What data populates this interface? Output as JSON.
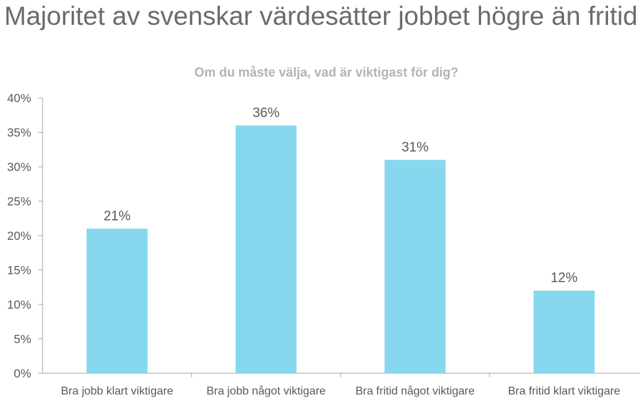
{
  "title": "Majoritet av svenskar värdesätter jobbet högre än fritid",
  "chart_data": {
    "type": "bar",
    "title": "Om du måste välja, vad är viktigast för dig?",
    "categories": [
      "Bra jobb klart viktigare",
      "Bra jobb något viktigare",
      "Bra fritid något viktigare",
      "Bra fritid klart viktigare"
    ],
    "values": [
      21,
      36,
      31,
      12
    ],
    "data_labels": [
      "21%",
      "36%",
      "31%",
      "12%"
    ],
    "xlabel": "",
    "ylabel": "",
    "ylim": [
      0,
      40
    ],
    "yticks": [
      "0%",
      "5%",
      "10%",
      "15%",
      "20%",
      "25%",
      "30%",
      "35%",
      "40%"
    ],
    "grid": false,
    "bar_color": "#87D7EE"
  }
}
